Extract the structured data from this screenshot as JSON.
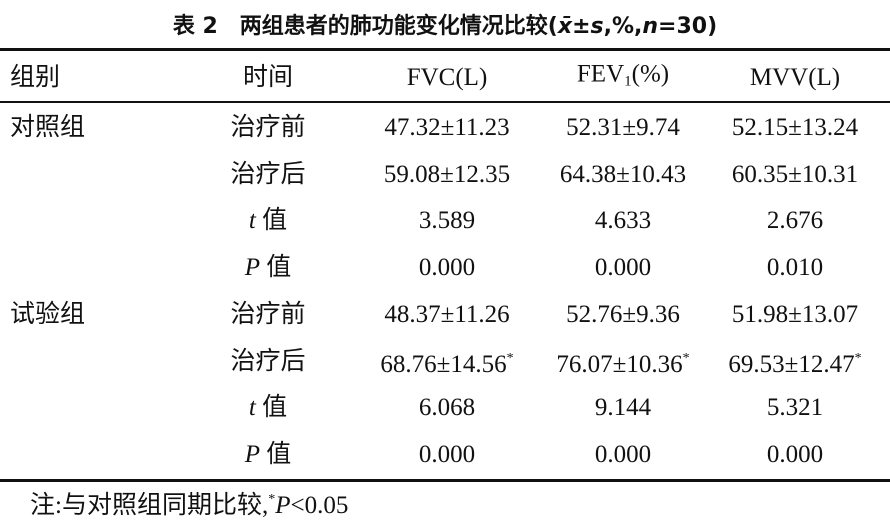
{
  "title": [
    {
      "text": "表 2"
    },
    {
      "text": "两组患者的肺功能变化情况比较("
    },
    {
      "text": "x̄",
      "style": "italic"
    },
    {
      "text": "±"
    },
    {
      "text": "s",
      "style": "italic"
    },
    {
      "text": ",%,"
    },
    {
      "text": "n",
      "style": "italic"
    },
    {
      "text": "=30)"
    }
  ],
  "table": {
    "header": [
      [
        {
          "text": "组别"
        }
      ],
      [
        {
          "text": "时间"
        }
      ],
      [
        {
          "text": "FVC(L)"
        }
      ],
      [
        {
          "text": "FEV"
        },
        {
          "text": "1",
          "style": "sub"
        },
        {
          "text": "(%)"
        }
      ],
      [
        {
          "text": "MVV(L)"
        }
      ]
    ],
    "groups": [
      {
        "name": "对照组",
        "rows": [
          {
            "time": [
              {
                "text": "治疗前"
              }
            ],
            "cells": [
              [
                {
                  "text": "47.32±11.23"
                }
              ],
              [
                {
                  "text": "52.31±9.74"
                }
              ],
              [
                {
                  "text": "52.15±13.24"
                }
              ]
            ]
          },
          {
            "time": [
              {
                "text": "治疗后"
              }
            ],
            "cells": [
              [
                {
                  "text": "59.08±12.35"
                }
              ],
              [
                {
                  "text": "64.38±10.43"
                }
              ],
              [
                {
                  "text": "60.35±10.31"
                }
              ]
            ]
          },
          {
            "time": [
              {
                "text": "t",
                "style": "italic"
              },
              {
                "text": " 值"
              }
            ],
            "cells": [
              [
                {
                  "text": "3.589"
                }
              ],
              [
                {
                  "text": "4.633"
                }
              ],
              [
                {
                  "text": "2.676"
                }
              ]
            ]
          },
          {
            "time": [
              {
                "text": "P",
                "style": "italic"
              },
              {
                "text": " 值"
              }
            ],
            "cells": [
              [
                {
                  "text": "0.000"
                }
              ],
              [
                {
                  "text": "0.000"
                }
              ],
              [
                {
                  "text": "0.010"
                }
              ]
            ]
          }
        ]
      },
      {
        "name": "试验组",
        "rows": [
          {
            "time": [
              {
                "text": "治疗前"
              }
            ],
            "cells": [
              [
                {
                  "text": "48.37±11.26"
                }
              ],
              [
                {
                  "text": "52.76±9.36"
                }
              ],
              [
                {
                  "text": "51.98±13.07"
                }
              ]
            ]
          },
          {
            "time": [
              {
                "text": "治疗后"
              }
            ],
            "cells": [
              [
                {
                  "text": "68.76±14.56"
                },
                {
                  "text": "*",
                  "style": "sup"
                }
              ],
              [
                {
                  "text": "76.07±10.36"
                },
                {
                  "text": "*",
                  "style": "sup"
                }
              ],
              [
                {
                  "text": "69.53±12.47"
                },
                {
                  "text": "*",
                  "style": "sup"
                }
              ]
            ]
          },
          {
            "time": [
              {
                "text": "t",
                "style": "italic"
              },
              {
                "text": " 值"
              }
            ],
            "cells": [
              [
                {
                  "text": "6.068"
                }
              ],
              [
                {
                  "text": "9.144"
                }
              ],
              [
                {
                  "text": "5.321"
                }
              ]
            ]
          },
          {
            "time": [
              {
                "text": "P",
                "style": "italic"
              },
              {
                "text": " 值"
              }
            ],
            "cells": [
              [
                {
                  "text": "0.000"
                }
              ],
              [
                {
                  "text": "0.000"
                }
              ],
              [
                {
                  "text": "0.000"
                }
              ]
            ]
          }
        ]
      }
    ]
  },
  "footnote": [
    {
      "text": "注:与对照组同期比较,"
    },
    {
      "text": "*",
      "style": "sup"
    },
    {
      "text": "P",
      "style": "italic"
    },
    {
      "text": "<0.05"
    }
  ]
}
